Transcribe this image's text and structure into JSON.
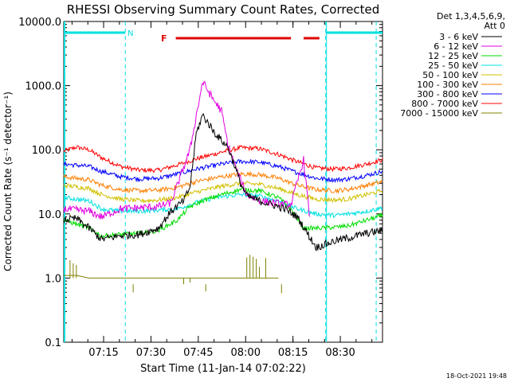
{
  "chart_data": {
    "type": "line",
    "title": "RHESSI Observing Summary Count Rates, Corrected",
    "xlabel": "Start Time (11-Jan-14 07:02:22)",
    "ylabel": "Corrected Count Rate (s⁻¹ detector⁻¹)",
    "yscale": "log",
    "ylim": [
      0.1,
      10000
    ],
    "xlim_minutes": [
      0,
      101
    ],
    "x_ticks": [
      {
        "label": "07:15",
        "minutes": 12.63
      },
      {
        "label": "07:30",
        "minutes": 27.63
      },
      {
        "label": "07:45",
        "minutes": 42.63
      },
      {
        "label": "08:00",
        "minutes": 57.63
      },
      {
        "label": "08:15",
        "minutes": 72.63
      },
      {
        "label": "08:30",
        "minutes": 87.63
      }
    ],
    "y_ticks": [
      {
        "label": "0.1",
        "value": 0.1
      },
      {
        "label": "1.0",
        "value": 1
      },
      {
        "label": "10.0",
        "value": 10
      },
      {
        "label": "100.0",
        "value": 100
      },
      {
        "label": "1000.0",
        "value": 1000
      },
      {
        "label": "10000.0",
        "value": 10000
      }
    ],
    "legend_header": [
      "Det 1,3,4,5,6,9,",
      "Att 0"
    ],
    "series": [
      {
        "name": "3 - 6 keV",
        "color": "#000000",
        "points": [
          [
            0,
            8
          ],
          [
            4,
            8.5
          ],
          [
            8,
            6
          ],
          [
            12,
            4
          ],
          [
            18,
            4.6
          ],
          [
            24,
            4.8
          ],
          [
            30,
            6
          ],
          [
            34,
            11
          ],
          [
            38,
            16
          ],
          [
            40,
            26
          ],
          [
            42,
            180
          ],
          [
            44,
            350
          ],
          [
            48,
            180
          ],
          [
            52,
            110
          ],
          [
            54,
            60
          ],
          [
            56,
            30
          ],
          [
            58,
            19
          ],
          [
            62,
            16
          ],
          [
            66,
            14
          ],
          [
            70,
            12
          ],
          [
            74,
            9
          ],
          [
            80,
            3
          ],
          [
            86,
            3.8
          ],
          [
            90,
            4.2
          ],
          [
            96,
            5
          ],
          [
            101,
            5.5
          ]
        ]
      },
      {
        "name": "6 - 12 keV",
        "color": "#e000e0",
        "points": [
          [
            0,
            12
          ],
          [
            8,
            11
          ],
          [
            12,
            9
          ],
          [
            18,
            12
          ],
          [
            24,
            12.5
          ],
          [
            30,
            13
          ],
          [
            34,
            15
          ],
          [
            40,
            100
          ],
          [
            44,
            1150
          ],
          [
            47,
            650
          ],
          [
            50,
            400
          ],
          [
            52,
            120
          ],
          [
            55,
            45
          ],
          [
            58,
            20
          ],
          [
            62,
            16
          ],
          [
            66,
            15
          ],
          [
            70,
            14
          ],
          [
            72,
            14
          ],
          [
            76,
            70
          ],
          [
            78,
            8
          ]
        ]
      },
      {
        "name": "12 - 25 keV",
        "color": "#00dd00",
        "points": [
          [
            0,
            8
          ],
          [
            8,
            6
          ],
          [
            12,
            4.5
          ],
          [
            18,
            4.8
          ],
          [
            24,
            5
          ],
          [
            30,
            5.5
          ],
          [
            36,
            8
          ],
          [
            40,
            13
          ],
          [
            44,
            16
          ],
          [
            50,
            20
          ],
          [
            56,
            24
          ],
          [
            62,
            23
          ],
          [
            68,
            18
          ],
          [
            72,
            12
          ],
          [
            76,
            6
          ],
          [
            80,
            6
          ],
          [
            86,
            6.2
          ],
          [
            90,
            6.5
          ],
          [
            96,
            8
          ],
          [
            101,
            9.5
          ]
        ]
      },
      {
        "name": "25 - 50 keV",
        "color": "#00e0e0",
        "points": [
          [
            0,
            18
          ],
          [
            8,
            16
          ],
          [
            12,
            12
          ],
          [
            18,
            11
          ],
          [
            24,
            11
          ],
          [
            30,
            11.5
          ],
          [
            36,
            12
          ],
          [
            42,
            15
          ],
          [
            48,
            18
          ],
          [
            56,
            20
          ],
          [
            62,
            19
          ],
          [
            68,
            16
          ],
          [
            74,
            12
          ],
          [
            80,
            10
          ],
          [
            86,
            9.5
          ],
          [
            90,
            10
          ],
          [
            96,
            11
          ],
          [
            101,
            12.5
          ]
        ]
      },
      {
        "name": "50 - 100 keV",
        "color": "#d0c000",
        "points": [
          [
            0,
            28
          ],
          [
            8,
            25
          ],
          [
            12,
            20
          ],
          [
            18,
            17
          ],
          [
            24,
            16
          ],
          [
            30,
            16.5
          ],
          [
            36,
            18
          ],
          [
            42,
            22
          ],
          [
            50,
            27
          ],
          [
            56,
            30
          ],
          [
            62,
            29
          ],
          [
            68,
            25
          ],
          [
            74,
            20
          ],
          [
            80,
            17
          ],
          [
            86,
            16.5
          ],
          [
            90,
            17
          ],
          [
            96,
            20
          ],
          [
            101,
            23
          ]
        ]
      },
      {
        "name": "100 - 300 keV",
        "color": "#ff7f00",
        "points": [
          [
            0,
            38
          ],
          [
            8,
            34
          ],
          [
            12,
            28
          ],
          [
            18,
            24
          ],
          [
            24,
            23
          ],
          [
            30,
            23.5
          ],
          [
            36,
            26
          ],
          [
            42,
            32
          ],
          [
            50,
            38
          ],
          [
            56,
            42
          ],
          [
            62,
            41
          ],
          [
            68,
            36
          ],
          [
            74,
            28
          ],
          [
            80,
            24
          ],
          [
            86,
            23
          ],
          [
            90,
            24
          ],
          [
            96,
            28
          ],
          [
            101,
            32
          ]
        ]
      },
      {
        "name": "300 - 800 keV",
        "color": "#0000ff",
        "points": [
          [
            0,
            60
          ],
          [
            8,
            55
          ],
          [
            12,
            46
          ],
          [
            18,
            38
          ],
          [
            24,
            35
          ],
          [
            30,
            36
          ],
          [
            36,
            42
          ],
          [
            42,
            50
          ],
          [
            50,
            60
          ],
          [
            56,
            66
          ],
          [
            62,
            64
          ],
          [
            68,
            55
          ],
          [
            74,
            44
          ],
          [
            80,
            36
          ],
          [
            86,
            34
          ],
          [
            90,
            35
          ],
          [
            96,
            40
          ],
          [
            101,
            46
          ]
        ]
      },
      {
        "name": "800 - 7000 keV",
        "color": "#ff0000",
        "points": [
          [
            0,
            95
          ],
          [
            4,
            110
          ],
          [
            8,
            100
          ],
          [
            12,
            75
          ],
          [
            18,
            55
          ],
          [
            24,
            48
          ],
          [
            30,
            48
          ],
          [
            36,
            58
          ],
          [
            42,
            72
          ],
          [
            50,
            92
          ],
          [
            56,
            108
          ],
          [
            62,
            104
          ],
          [
            68,
            85
          ],
          [
            74,
            65
          ],
          [
            80,
            52
          ],
          [
            86,
            50
          ],
          [
            90,
            52
          ],
          [
            96,
            60
          ],
          [
            101,
            70
          ]
        ]
      },
      {
        "name": "7000 - 15000 keV",
        "color": "#808000",
        "points": [
          [
            0,
            1.1
          ],
          [
            4,
            1.1
          ],
          [
            8,
            1.0
          ],
          [
            12,
            1.0
          ],
          [
            18,
            1.0
          ],
          [
            24,
            1.0
          ],
          [
            30,
            1.0
          ],
          [
            36,
            1.0
          ],
          [
            42,
            1.0
          ],
          [
            50,
            1.0
          ],
          [
            56,
            1.0
          ],
          [
            62,
            1.0
          ],
          [
            68,
            1.0
          ]
        ]
      }
    ],
    "annotations": {
      "night_label": "N",
      "flare_label": "F",
      "night_bars_minutes": [
        [
          0,
          19.5
        ],
        [
          83,
          101
        ]
      ],
      "flare_bars_minutes": [
        [
          35.5,
          72
        ],
        [
          76,
          81
        ]
      ],
      "dashed_markers_minutes": [
        19.5,
        83,
        99
      ]
    }
  },
  "footer": {
    "date": "18-Oct-2021 19:48"
  }
}
